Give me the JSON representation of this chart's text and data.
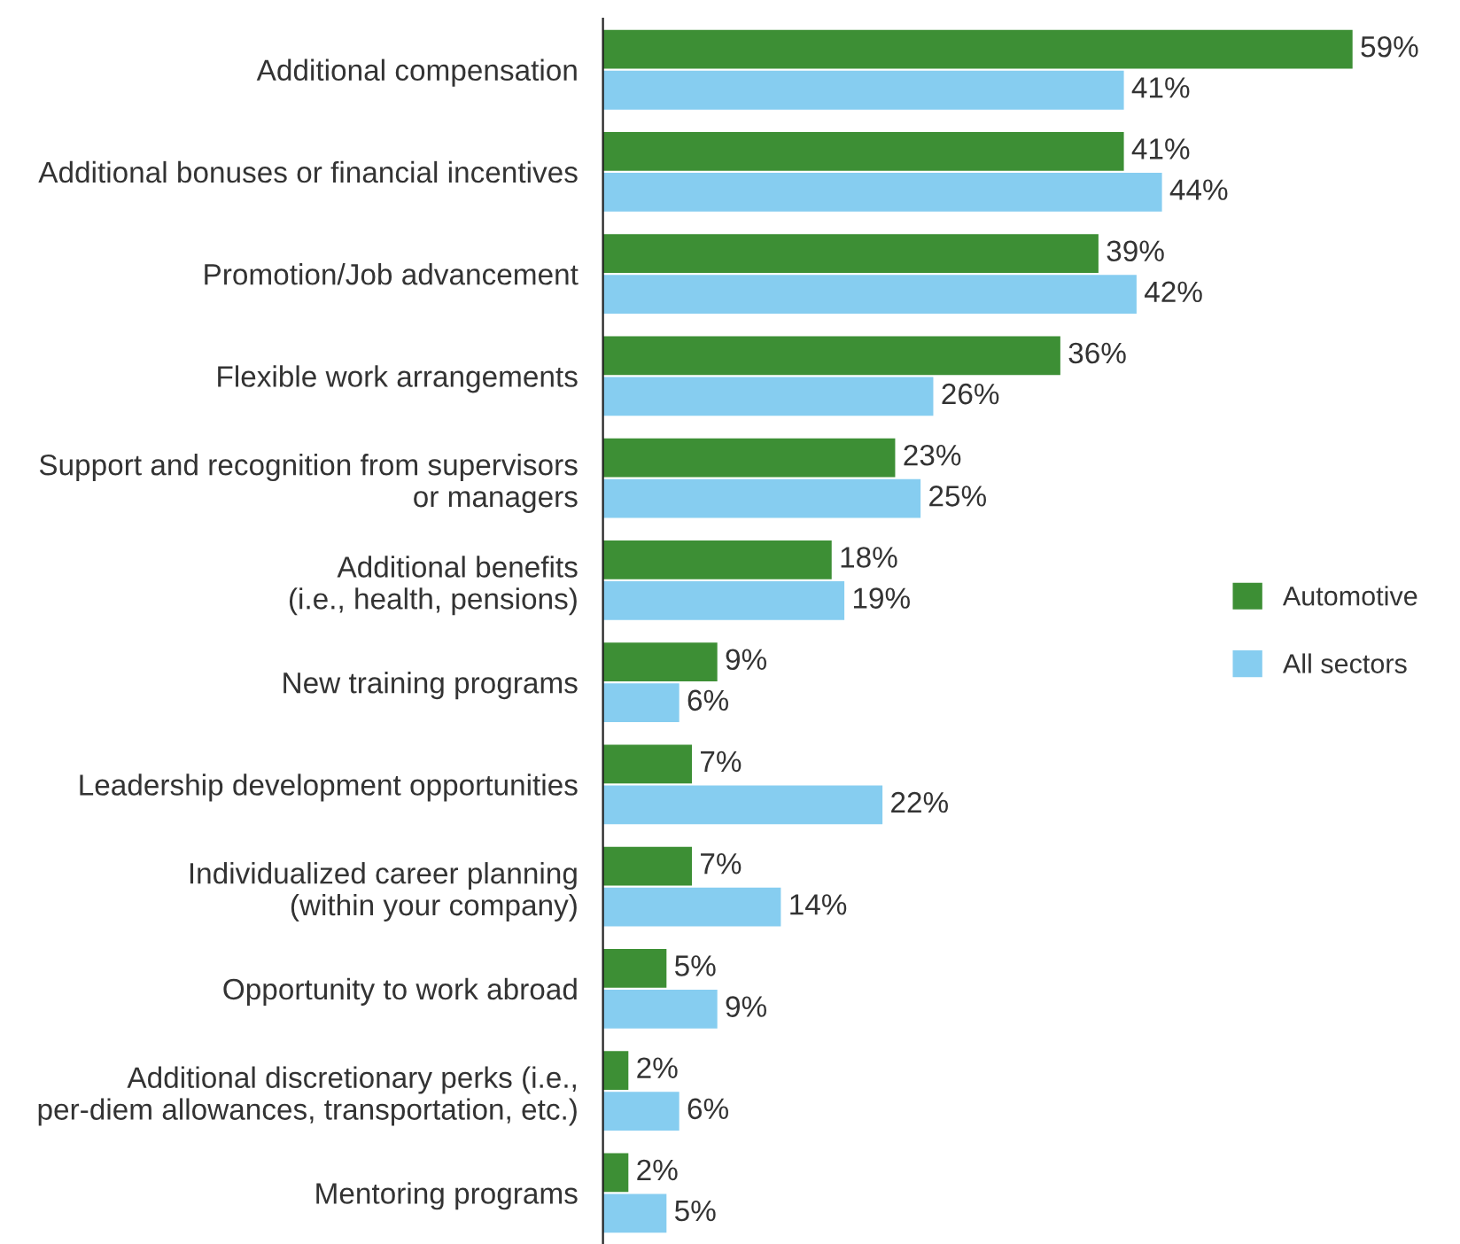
{
  "chart_data": {
    "type": "bar",
    "orientation": "horizontal",
    "categories": [
      "Additional compensation",
      "Additional bonuses or financial incentives",
      "Promotion/Job advancement",
      "Flexible work arrangements",
      "Support and recognition from supervisors\nor managers",
      "Additional benefits\n(i.e., health, pensions)",
      "New training programs",
      "Leadership development opportunities",
      "Individualized career planning\n(within your company)",
      "Opportunity to work abroad",
      "Additional discretionary perks (i.e.,\nper-diem allowances, transportation, etc.)",
      "Mentoring programs"
    ],
    "series": [
      {
        "name": "Automotive",
        "color": "#3d8f35",
        "values": [
          59,
          41,
          39,
          36,
          23,
          18,
          9,
          7,
          7,
          5,
          2,
          2
        ],
        "value_labels": [
          "59%",
          "41%",
          "39%",
          "36%",
          "23%",
          "18%",
          "9%",
          "7%",
          "7%",
          "5%",
          "2%",
          "2%"
        ]
      },
      {
        "name": "All sectors",
        "color": "#86cdf0",
        "values": [
          41,
          44,
          42,
          26,
          25,
          19,
          6,
          22,
          14,
          9,
          6,
          5
        ],
        "value_labels": [
          "41%",
          "44%",
          "42%",
          "26%",
          "25%",
          "19%",
          "6%",
          "22%",
          "14%",
          "9%",
          "6%",
          "5%"
        ]
      }
    ],
    "legend": "right",
    "grid": false
  }
}
